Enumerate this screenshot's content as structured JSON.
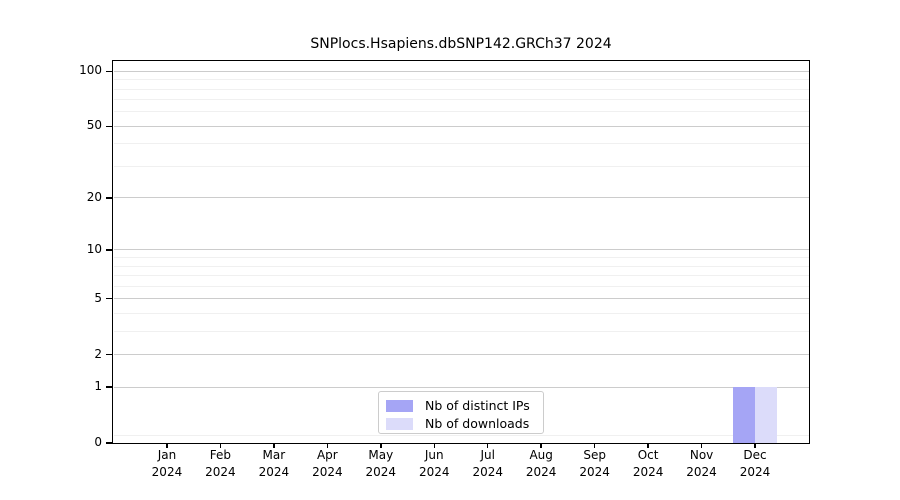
{
  "chart_data": {
    "type": "bar",
    "title": "SNPlocs.Hsapiens.dbSNP142.GRCh37 2024",
    "categories": [
      "Jan",
      "Feb",
      "Mar",
      "Apr",
      "May",
      "Jun",
      "Jul",
      "Aug",
      "Sep",
      "Oct",
      "Nov",
      "Dec"
    ],
    "category_year": "2024",
    "series": [
      {
        "name": "Nb of distinct IPs",
        "color": "#a5a5f5",
        "values": [
          0,
          0,
          0,
          0,
          0,
          0,
          0,
          0,
          0,
          0,
          0,
          1
        ]
      },
      {
        "name": "Nb of downloads",
        "color": "#dcdcfa",
        "values": [
          0,
          0,
          0,
          0,
          0,
          0,
          0,
          0,
          0,
          0,
          0,
          1
        ]
      }
    ],
    "y_scale": "log1p",
    "y_ticks": [
      0,
      1,
      2,
      5,
      10,
      20,
      50,
      100
    ],
    "y_minor_ticks": [
      0.1,
      3,
      4,
      6,
      7,
      8,
      9,
      30,
      40,
      60,
      70,
      80,
      90
    ],
    "ylim": [
      0,
      113
    ],
    "xlabel": "",
    "ylabel": "",
    "grid": true,
    "legend_position": "lower center"
  }
}
